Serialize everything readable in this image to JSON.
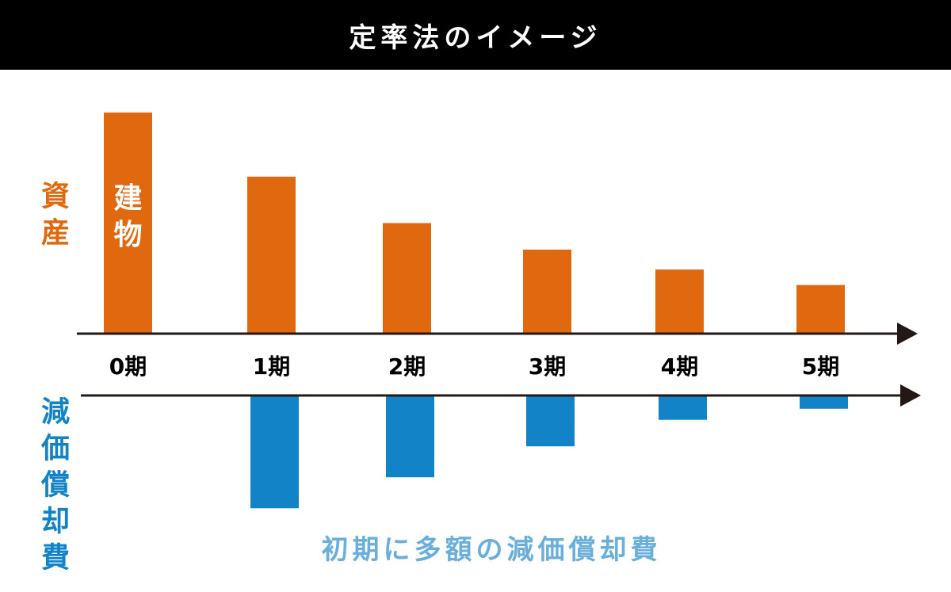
{
  "title": "定率法のイメージ",
  "colors": {
    "asset": "#e0690f",
    "depreciation": "#1183c6",
    "caption": "#6aaedc",
    "title_bar": "#000000"
  },
  "chart_data": {
    "type": "bar",
    "title": "定率法のイメージ",
    "categories": [
      "0期",
      "1期",
      "2期",
      "3期",
      "4期",
      "5期"
    ],
    "series": [
      {
        "name": "資産",
        "bar_label": "建物",
        "values": [
          100,
          71,
          50,
          38,
          29,
          22
        ]
      },
      {
        "name": "減価償却費",
        "values": [
          null,
          51,
          37,
          23,
          11,
          6
        ]
      }
    ],
    "note": "相対値（目盛表示なし）",
    "annotation": "初期に多額の減価償却費",
    "grid": false,
    "legend": "none"
  }
}
